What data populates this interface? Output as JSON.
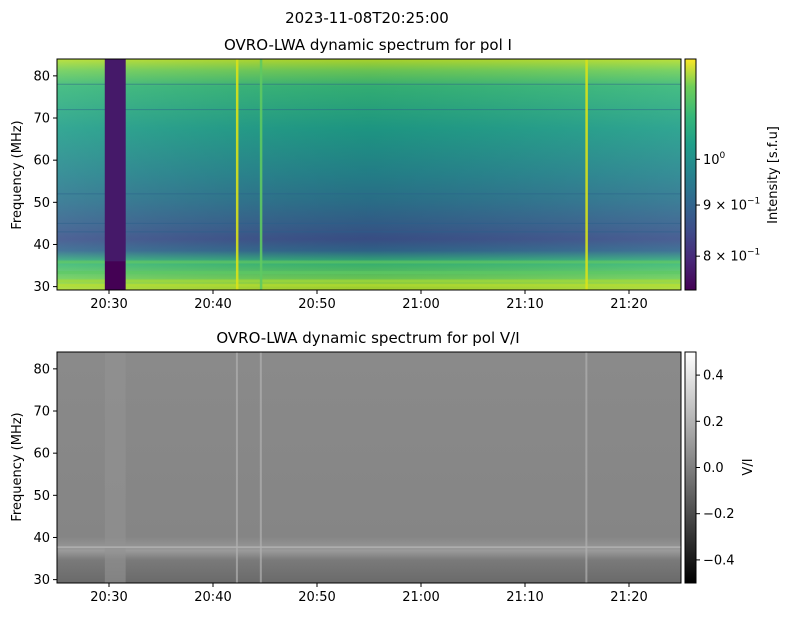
{
  "suptitle": "2023-11-08T20:25:00",
  "chart_data": [
    {
      "type": "heatmap",
      "title": "OVRO-LWA dynamic spectrum for pol I",
      "xlabel": "",
      "ylabel": "Frequency (MHz)",
      "x_ticks": [
        "20:30",
        "20:40",
        "20:50",
        "21:00",
        "21:10",
        "21:20"
      ],
      "x_tick_minutes": [
        30,
        40,
        50,
        60,
        70,
        80
      ],
      "xlim_minutes_after_20h": [
        25,
        85
      ],
      "y_ticks": [
        30,
        40,
        50,
        60,
        70,
        80
      ],
      "ylim": [
        29.2,
        84
      ],
      "colormap": "viridis",
      "colorbar": {
        "label": "Intensity [s.f.u]",
        "scale": "log",
        "ticks": [
          {
            "value": 0.8,
            "base": "8 × 10",
            "exp": "−1"
          },
          {
            "value": 0.9,
            "base": "9 × 10",
            "exp": "−1"
          },
          {
            "value": 1.0,
            "base": "10",
            "exp": "0"
          }
        ],
        "range": [
          0.74,
          1.26
        ]
      },
      "features": {
        "data_gap_minutes": [
          29.6,
          31.6
        ],
        "vertical_bursts_minutes": [
          42.3,
          44.6,
          75.9
        ],
        "bright_low_band_mhz": [
          29.2,
          37.0
        ]
      }
    },
    {
      "type": "heatmap",
      "title": "OVRO-LWA dynamic spectrum for pol V/I",
      "xlabel": "",
      "ylabel": "Frequency (MHz)",
      "x_ticks": [
        "20:30",
        "20:40",
        "20:50",
        "21:00",
        "21:10",
        "21:20"
      ],
      "x_tick_minutes": [
        30,
        40,
        50,
        60,
        70,
        80
      ],
      "xlim_minutes_after_20h": [
        25,
        85
      ],
      "y_ticks": [
        30,
        40,
        50,
        60,
        70,
        80
      ],
      "ylim": [
        29.2,
        84
      ],
      "colormap": "gray",
      "colorbar": {
        "label": "V/I",
        "scale": "linear",
        "ticks": [
          {
            "value": 0.4,
            "label": "0.4"
          },
          {
            "value": 0.2,
            "label": "0.2"
          },
          {
            "value": 0.0,
            "label": "0.0"
          },
          {
            "value": -0.2,
            "label": "−0.2"
          },
          {
            "value": -0.4,
            "label": "−0.4"
          }
        ],
        "range": [
          -0.5,
          0.5
        ]
      }
    }
  ]
}
